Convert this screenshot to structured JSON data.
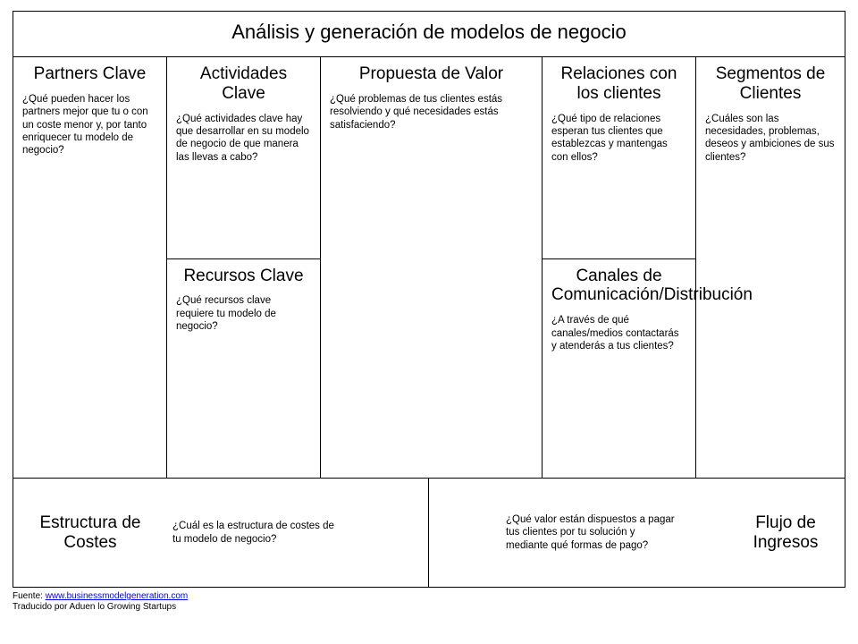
{
  "canvas": {
    "type": "infographic",
    "title": "Análisis y generación de modelos de negocio",
    "background_color": "#ffffff",
    "border_color": "#000000",
    "title_fontsize": 22,
    "heading_fontsize": 19,
    "desc_fontsize": 11.5,
    "blocks": {
      "partners": {
        "title": "Partners Clave",
        "desc": "¿Qué pueden hacer los partners mejor que tu o con un coste menor y, por tanto enriquecer tu modelo de negocio?"
      },
      "activities": {
        "title": "Actividades Clave",
        "desc": "¿Qué actividades clave hay que desarrollar en su modelo de negocio de que manera las llevas a cabo?"
      },
      "resources": {
        "title": "Recursos Clave",
        "desc": "¿Qué recursos clave requiere tu modelo de negocio?"
      },
      "value": {
        "title": "Propuesta de Valor",
        "desc": "¿Qué problemas de tus clientes estás resolviendo y qué necesidades estás satisfaciendo?"
      },
      "relations": {
        "title": "Relaciones con los clientes",
        "desc": "¿Qué tipo de relaciones esperan tus clientes que establezcas y mantengas con ellos?"
      },
      "channels": {
        "title": "Canales de Comunicación/Distribución",
        "desc": "¿A través de qué canales/medios contactarás y atenderás a tus clientes?"
      },
      "segments": {
        "title": "Segmentos de  Clientes",
        "desc": "¿Cuáles son las necesidades, problemas, deseos y ambiciones de sus clientes?"
      },
      "costs": {
        "title": "Estructura de Costes",
        "desc": "¿Cuál es la estructura de costes de tu modelo de negocio?"
      },
      "revenue": {
        "title": "Flujo de Ingresos",
        "desc": "¿Qué valor están dispuestos a pagar tus clientes por tu solución y mediante qué formas de pago?"
      }
    },
    "footer": {
      "source_label": "Fuente: ",
      "source_link": "www.businessmodelgeneration.com",
      "translated": "Traducido por Aduen lo Growing Startups"
    }
  }
}
